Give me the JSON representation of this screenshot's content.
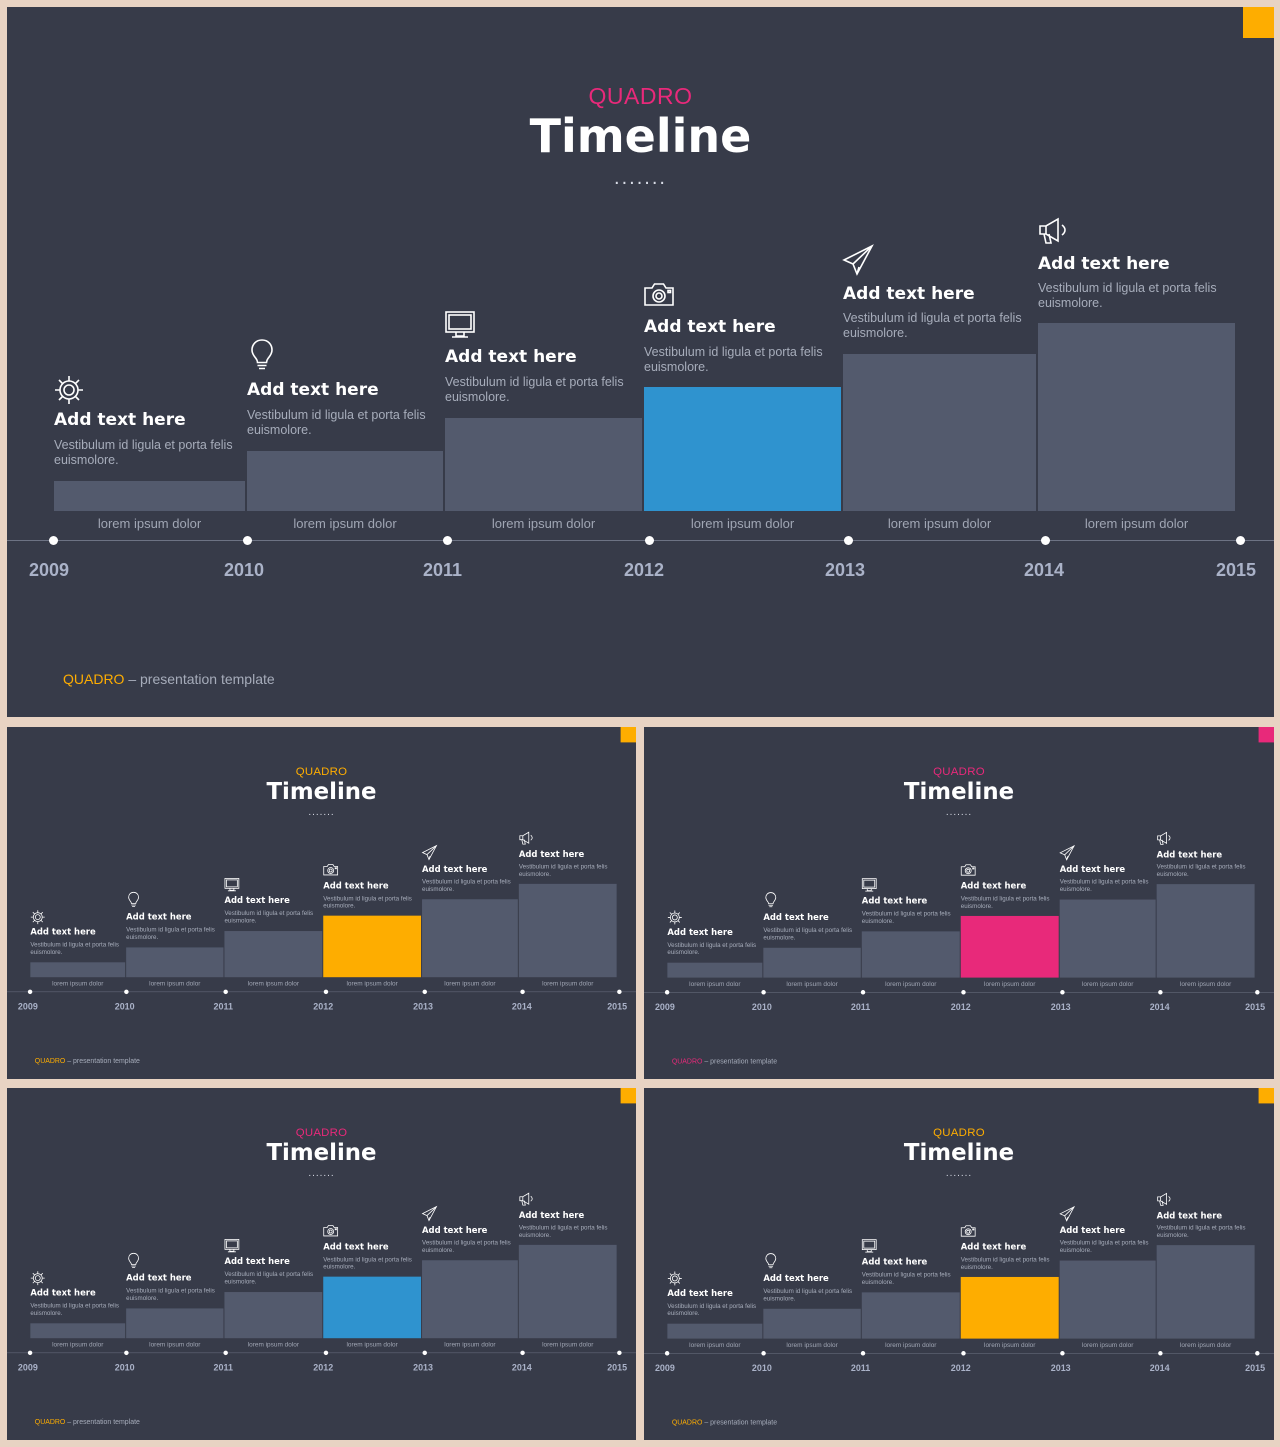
{
  "colors": {
    "background": "#373b49",
    "bar": "#535a6d",
    "frame": "#e8d3c3",
    "blue": "#2f93cf",
    "orange": "#fead00",
    "pink": "#e8297a"
  },
  "slides": [
    {
      "brand": "QUADRO",
      "title": "Timeline",
      "brand_color": "#e8297a",
      "corner_color": "#fead00",
      "highlight_color": "#2f93cf",
      "footer_brand_color": "#fead00"
    },
    {
      "brand": "QUADRO",
      "title": "Timeline",
      "brand_color": "#fead00",
      "corner_color": "#fead00",
      "highlight_color": "#fead00",
      "footer_brand_color": "#fead00"
    },
    {
      "brand": "QUADRO",
      "title": "Timeline",
      "brand_color": "#e8297a",
      "corner_color": "#e8297a",
      "highlight_color": "#e8297a",
      "footer_brand_color": "#e8297a"
    },
    {
      "brand": "QUADRO",
      "title": "Timeline",
      "brand_color": "#e8297a",
      "corner_color": "#fead00",
      "highlight_color": "#2f93cf",
      "footer_brand_color": "#fead00"
    },
    {
      "brand": "QUADRO",
      "title": "Timeline",
      "brand_color": "#fead00",
      "corner_color": "#fead00",
      "highlight_color": "#fead00",
      "footer_brand_color": "#fead00"
    }
  ],
  "title_dots": ".......",
  "steps": [
    {
      "icon": "gear-icon",
      "title": "Add text here",
      "description": "Vestibulum id ligula et porta felis euismolore.",
      "caption": "lorem ipsum dolor",
      "highlight": false
    },
    {
      "icon": "lightbulb-icon",
      "title": "Add text here",
      "description": "Vestibulum id ligula et porta felis euismolore.",
      "caption": "lorem ipsum dolor",
      "highlight": false
    },
    {
      "icon": "monitor-icon",
      "title": "Add text here",
      "description": "Vestibulum id ligula et porta felis euismolore.",
      "caption": "lorem ipsum dolor",
      "highlight": false
    },
    {
      "icon": "camera-icon",
      "title": "Add text here",
      "description": "Vestibulum id ligula et porta felis euismolore.",
      "caption": "lorem ipsum dolor",
      "highlight": true
    },
    {
      "icon": "paper-plane-icon",
      "title": "Add text here",
      "description": "Vestibulum id ligula et porta felis euismolore.",
      "caption": "lorem ipsum dolor",
      "highlight": false
    },
    {
      "icon": "megaphone-icon",
      "title": "Add text here",
      "description": "Vestibulum id ligula et porta felis euismolore.",
      "caption": "lorem ipsum dolor",
      "highlight": false
    }
  ],
  "years": [
    "2009",
    "2010",
    "2011",
    "2012",
    "2013",
    "2014",
    "2015"
  ],
  "footer": {
    "brand": "QUADRO",
    "text": " – presentation template"
  }
}
